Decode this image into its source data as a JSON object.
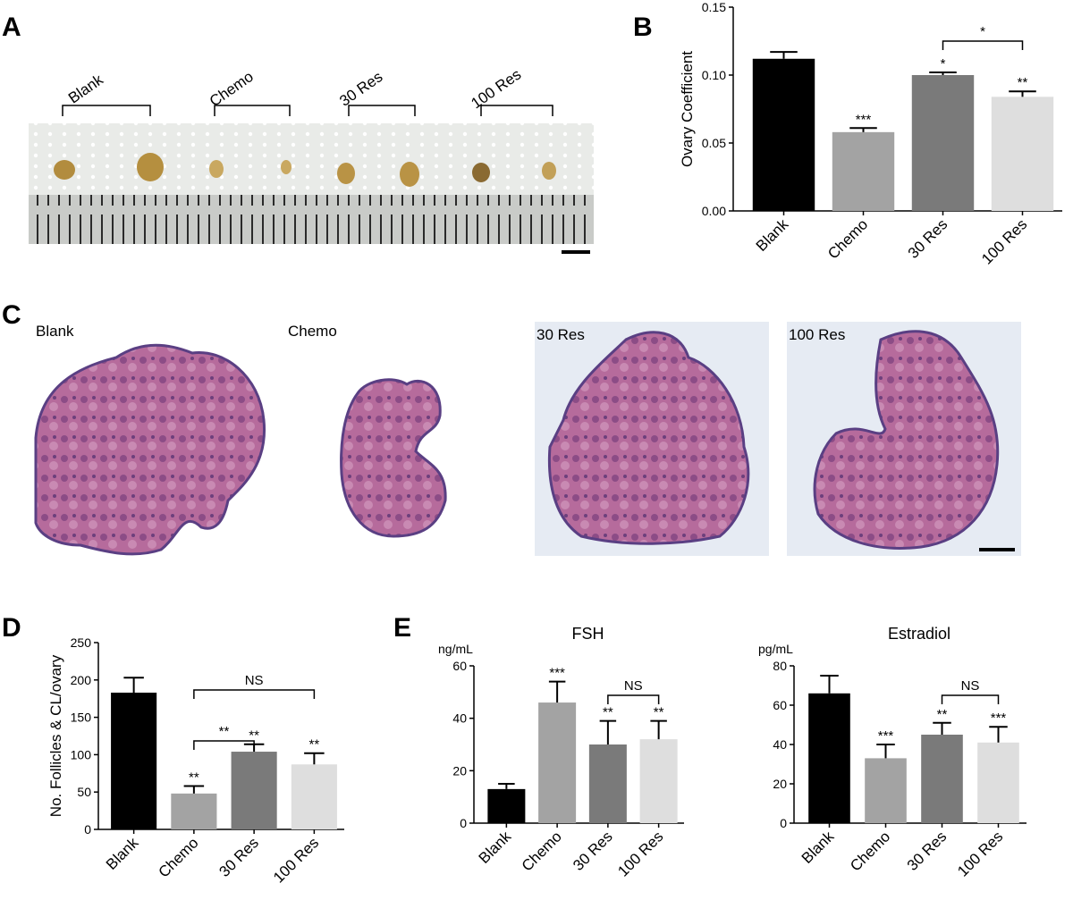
{
  "panels": {
    "a": "A",
    "b": "B",
    "c": "C",
    "d": "D",
    "e": "E"
  },
  "photo_a": {
    "labels": [
      "Blank",
      "Chemo",
      "30 Res",
      "100 Res"
    ]
  },
  "histology_c": {
    "labels": [
      "Blank",
      "Chemo",
      "30 Res",
      "100 Res"
    ]
  },
  "colors": {
    "Blank": "#000000",
    "Chemo": "#a3a3a3",
    "30 Res": "#7a7a7a",
    "100 Res": "#dedede"
  },
  "chart_data": [
    {
      "panel": "B",
      "type": "bar",
      "categories": [
        "Blank",
        "Chemo",
        "30 Res",
        "100 Res"
      ],
      "values": [
        0.112,
        0.058,
        0.1,
        0.084
      ],
      "errors": [
        0.005,
        0.003,
        0.002,
        0.004
      ],
      "significance": [
        "",
        "***",
        "*",
        "**"
      ],
      "ylabel": "Ovary Coefficient",
      "ylim": [
        0,
        0.15
      ],
      "yticks": [
        "0.00",
        "0.05",
        "0.10",
        "0.15"
      ],
      "brackets": [
        {
          "from": 2,
          "to": 3,
          "label": "*"
        }
      ]
    },
    {
      "panel": "D",
      "type": "bar",
      "categories": [
        "Blank",
        "Chemo",
        "30 Res",
        "100 Res"
      ],
      "values": [
        183,
        48,
        104,
        87
      ],
      "errors": [
        20,
        10,
        10,
        15
      ],
      "significance": [
        "",
        "**",
        "**",
        "**"
      ],
      "ylabel": "No. Follicles & CL/ovary",
      "ylim": [
        0,
        250
      ],
      "yticks": [
        "0",
        "50",
        "100",
        "150",
        "200",
        "250"
      ],
      "brackets": [
        {
          "from": 1,
          "to": 2,
          "label": "**"
        },
        {
          "from": 1,
          "to": 3,
          "label": "NS"
        }
      ]
    },
    {
      "panel": "E",
      "type": "bar",
      "title": "FSH",
      "unit": "ng/mL",
      "categories": [
        "Blank",
        "Chemo",
        "30 Res",
        "100 Res"
      ],
      "values": [
        13,
        46,
        30,
        32
      ],
      "errors": [
        2,
        8,
        9,
        7
      ],
      "significance": [
        "",
        "***",
        "**",
        "**"
      ],
      "ylim": [
        0,
        60
      ],
      "yticks": [
        "0",
        "20",
        "40",
        "60"
      ],
      "brackets": [
        {
          "from": 2,
          "to": 3,
          "label": "NS"
        }
      ]
    },
    {
      "panel": "E",
      "type": "bar",
      "title": "Estradiol",
      "unit": "pg/mL",
      "categories": [
        "Blank",
        "Chemo",
        "30 Res",
        "100 Res"
      ],
      "values": [
        66,
        33,
        45,
        41
      ],
      "errors": [
        9,
        7,
        6,
        8
      ],
      "significance": [
        "",
        "***",
        "**",
        "***"
      ],
      "ylim": [
        0,
        80
      ],
      "yticks": [
        "0",
        "20",
        "40",
        "60",
        "80"
      ],
      "brackets": [
        {
          "from": 2,
          "to": 3,
          "label": "NS"
        }
      ]
    }
  ]
}
